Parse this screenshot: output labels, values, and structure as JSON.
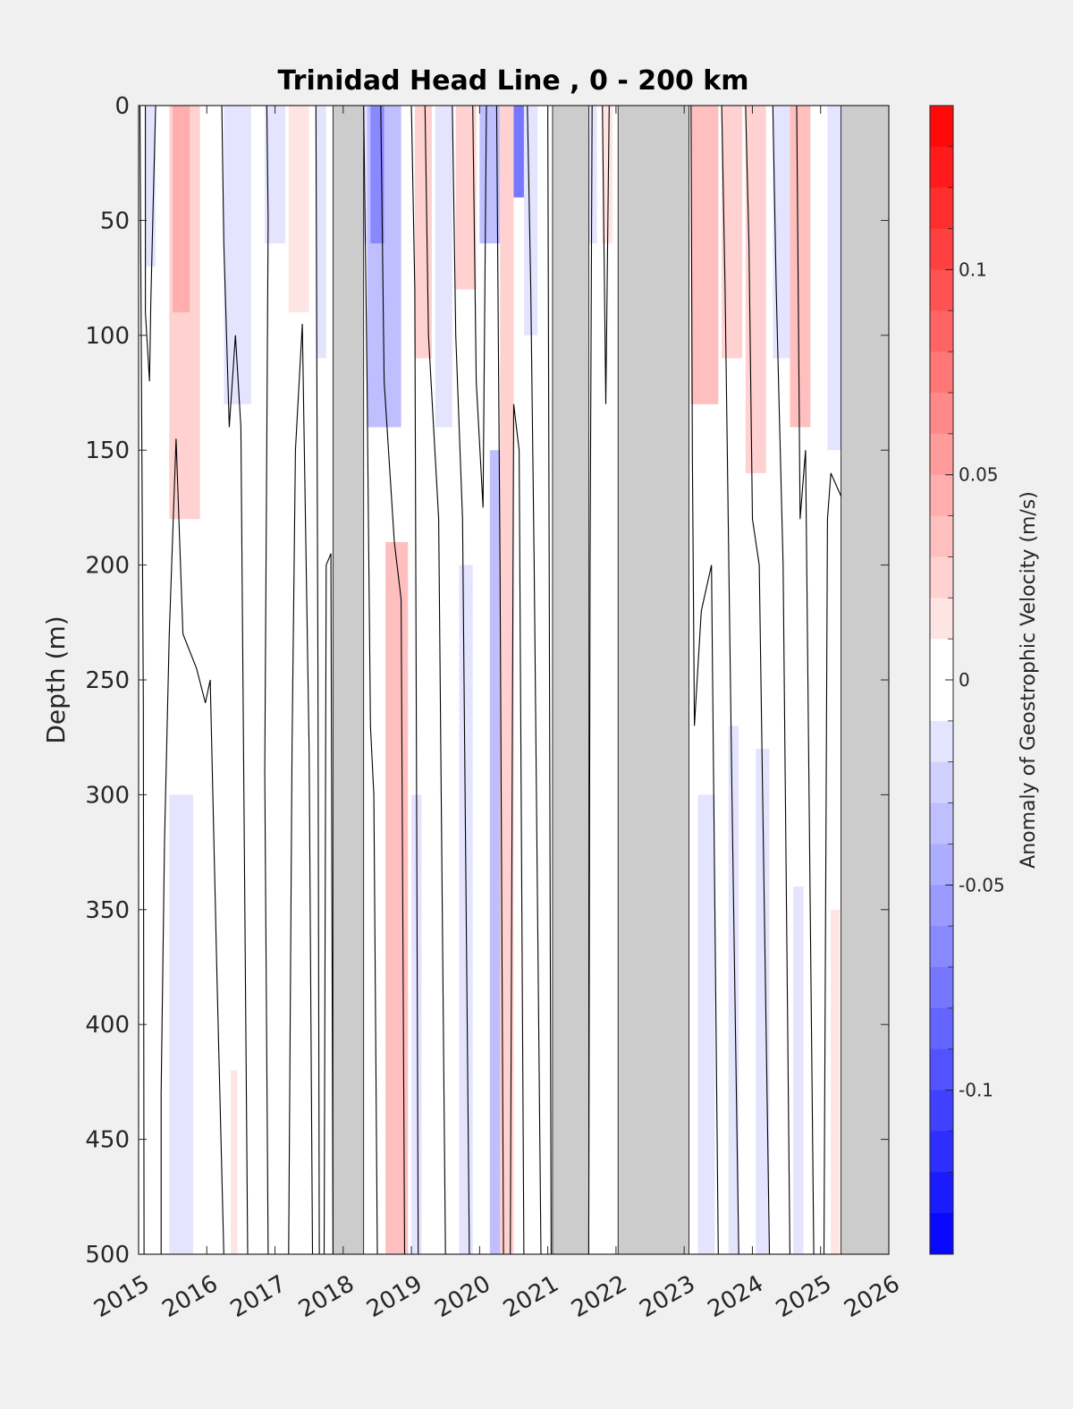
{
  "chart_data": {
    "type": "heatmap",
    "title": "Trinidad Head Line , 0 - 200 km",
    "xlabel": "",
    "ylabel": "Depth (m)",
    "colorbar_label": "Anomaly of Geostrophic Velocity (m/s)",
    "xlim": [
      2015,
      2026
    ],
    "ylim": [
      0,
      500
    ],
    "y_reversed": true,
    "x_ticks": [
      "2015",
      "2016",
      "2017",
      "2018",
      "2019",
      "2020",
      "2021",
      "2022",
      "2023",
      "2024",
      "2025",
      "2026"
    ],
    "y_ticks": [
      "0",
      "50",
      "100",
      "150",
      "200",
      "250",
      "300",
      "350",
      "400",
      "450",
      "500"
    ],
    "clim": [
      -0.14,
      0.14
    ],
    "colorbar_ticks": [
      {
        "value": 0.1,
        "label": "0.1"
      },
      {
        "value": 0.05,
        "label": "0.05"
      },
      {
        "value": 0,
        "label": "0"
      },
      {
        "value": -0.05,
        "label": "-0.05"
      },
      {
        "value": -0.1,
        "label": "-0.1"
      }
    ],
    "colorbar_levels": 28,
    "no_data_color": "#cccccc",
    "colormap": {
      "negative": "#0000ff",
      "zero": "#ffffff",
      "positive": "#ff0000"
    },
    "no_data_periods": [
      [
        2017.85,
        2018.3
      ],
      [
        2021.07,
        2021.6
      ],
      [
        2022.03,
        2023.07
      ],
      [
        2025.3,
        2026.0
      ]
    ],
    "anomaly_bands": [
      {
        "x0": 2015.1,
        "x1": 2015.25,
        "d0": 0,
        "d1": 70,
        "v": -0.015
      },
      {
        "x0": 2015.45,
        "x1": 2015.9,
        "d0": 0,
        "d1": 180,
        "v": 0.025
      },
      {
        "x0": 2015.5,
        "x1": 2015.75,
        "d0": 0,
        "d1": 90,
        "v": 0.04
      },
      {
        "x0": 2015.45,
        "x1": 2015.8,
        "d0": 300,
        "d1": 500,
        "v": -0.015
      },
      {
        "x0": 2016.25,
        "x1": 2016.65,
        "d0": 0,
        "d1": 130,
        "v": -0.015
      },
      {
        "x0": 2016.35,
        "x1": 2016.45,
        "d0": 420,
        "d1": 500,
        "v": 0.015
      },
      {
        "x0": 2016.85,
        "x1": 2017.15,
        "d0": 0,
        "d1": 60,
        "v": -0.015
      },
      {
        "x0": 2017.2,
        "x1": 2017.5,
        "d0": 0,
        "d1": 90,
        "v": 0.015
      },
      {
        "x0": 2017.6,
        "x1": 2017.75,
        "d0": 0,
        "d1": 110,
        "v": -0.015
      },
      {
        "x0": 2018.3,
        "x1": 2018.55,
        "d0": 0,
        "d1": 60,
        "v": -0.015
      },
      {
        "x0": 2018.35,
        "x1": 2018.85,
        "d0": 0,
        "d1": 140,
        "v": -0.04
      },
      {
        "x0": 2018.4,
        "x1": 2018.6,
        "d0": 0,
        "d1": 60,
        "v": -0.07
      },
      {
        "x0": 2018.62,
        "x1": 2018.95,
        "d0": 190,
        "d1": 500,
        "v": 0.03
      },
      {
        "x0": 2019.05,
        "x1": 2019.3,
        "d0": 0,
        "d1": 110,
        "v": 0.02
      },
      {
        "x0": 2019.0,
        "x1": 2019.15,
        "d0": 300,
        "d1": 500,
        "v": -0.015
      },
      {
        "x0": 2019.35,
        "x1": 2019.6,
        "d0": 0,
        "d1": 140,
        "v": -0.015
      },
      {
        "x0": 2019.65,
        "x1": 2019.95,
        "d0": 0,
        "d1": 80,
        "v": 0.02
      },
      {
        "x0": 2019.7,
        "x1": 2019.9,
        "d0": 200,
        "d1": 500,
        "v": -0.015
      },
      {
        "x0": 2020.0,
        "x1": 2020.3,
        "d0": 0,
        "d1": 60,
        "v": -0.04
      },
      {
        "x0": 2020.15,
        "x1": 2020.4,
        "d0": 150,
        "d1": 500,
        "v": -0.04
      },
      {
        "x0": 2020.3,
        "x1": 2020.5,
        "d0": 0,
        "d1": 500,
        "v": 0.025
      },
      {
        "x0": 2020.5,
        "x1": 2020.65,
        "d0": 0,
        "d1": 40,
        "v": -0.08
      },
      {
        "x0": 2020.65,
        "x1": 2020.85,
        "d0": 0,
        "d1": 100,
        "v": -0.015
      },
      {
        "x0": 2021.6,
        "x1": 2021.72,
        "d0": 0,
        "d1": 60,
        "v": -0.015
      },
      {
        "x0": 2021.8,
        "x1": 2021.95,
        "d0": 0,
        "d1": 60,
        "v": 0.015
      },
      {
        "x0": 2023.1,
        "x1": 2023.5,
        "d0": 0,
        "d1": 130,
        "v": 0.035
      },
      {
        "x0": 2023.2,
        "x1": 2023.45,
        "d0": 300,
        "d1": 500,
        "v": -0.015
      },
      {
        "x0": 2023.55,
        "x1": 2023.85,
        "d0": 0,
        "d1": 110,
        "v": 0.02
      },
      {
        "x0": 2023.65,
        "x1": 2023.8,
        "d0": 270,
        "d1": 500,
        "v": -0.015
      },
      {
        "x0": 2023.9,
        "x1": 2024.2,
        "d0": 0,
        "d1": 160,
        "v": 0.025
      },
      {
        "x0": 2024.05,
        "x1": 2024.25,
        "d0": 280,
        "d1": 500,
        "v": -0.015
      },
      {
        "x0": 2024.3,
        "x1": 2024.55,
        "d0": 0,
        "d1": 110,
        "v": -0.015
      },
      {
        "x0": 2024.55,
        "x1": 2024.85,
        "d0": 0,
        "d1": 140,
        "v": 0.03
      },
      {
        "x0": 2024.6,
        "x1": 2024.75,
        "d0": 340,
        "d1": 500,
        "v": -0.015
      },
      {
        "x0": 2025.1,
        "x1": 2025.3,
        "d0": 0,
        "d1": 150,
        "v": -0.02
      },
      {
        "x0": 2025.15,
        "x1": 2025.28,
        "d0": 350,
        "d1": 500,
        "v": 0.015
      }
    ],
    "contours": [
      [
        [
          2015.02,
          0
        ],
        [
          2015.05,
          160
        ],
        [
          2015.07,
          260
        ],
        [
          2015.08,
          500
        ]
      ],
      [
        [
          2015.25,
          0
        ],
        [
          2015.22,
          35
        ],
        [
          2015.18,
          85
        ],
        [
          2015.16,
          120
        ],
        [
          2015.1,
          90
        ],
        [
          2015.1,
          0
        ]
      ],
      [
        [
          2015.33,
          500
        ],
        [
          2015.33,
          430
        ],
        [
          2015.38,
          320
        ],
        [
          2015.45,
          230
        ],
        [
          2015.55,
          145
        ],
        [
          2015.65,
          230
        ],
        [
          2015.85,
          245
        ],
        [
          2015.98,
          260
        ],
        [
          2016.05,
          250
        ],
        [
          2016.15,
          380
        ],
        [
          2016.25,
          500
        ]
      ],
      [
        [
          2016.22,
          0
        ],
        [
          2016.25,
          60
        ],
        [
          2016.33,
          140
        ],
        [
          2016.42,
          100
        ],
        [
          2016.5,
          140
        ],
        [
          2016.6,
          500
        ]
      ],
      [
        [
          2016.88,
          0
        ],
        [
          2016.9,
          50
        ],
        [
          2016.85,
          290
        ],
        [
          2016.9,
          500
        ]
      ],
      [
        [
          2017.2,
          500
        ],
        [
          2017.25,
          280
        ],
        [
          2017.3,
          150
        ],
        [
          2017.4,
          95
        ],
        [
          2017.5,
          280
        ],
        [
          2017.55,
          500
        ]
      ],
      [
        [
          2017.6,
          0
        ],
        [
          2017.63,
          250
        ],
        [
          2017.65,
          500
        ]
      ],
      [
        [
          2017.72,
          500
        ],
        [
          2017.75,
          200
        ],
        [
          2017.82,
          195
        ],
        [
          2017.85,
          500
        ]
      ],
      [
        [
          2018.3,
          0
        ],
        [
          2018.35,
          120
        ],
        [
          2018.4,
          270
        ],
        [
          2018.45,
          300
        ],
        [
          2018.5,
          500
        ]
      ],
      [
        [
          2018.55,
          0
        ],
        [
          2018.6,
          120
        ],
        [
          2018.75,
          190
        ],
        [
          2018.85,
          215
        ],
        [
          2018.9,
          500
        ]
      ],
      [
        [
          2019.0,
          0
        ],
        [
          2019.05,
          80
        ],
        [
          2019.1,
          500
        ]
      ],
      [
        [
          2019.2,
          0
        ],
        [
          2019.25,
          100
        ],
        [
          2019.4,
          180
        ],
        [
          2019.5,
          500
        ]
      ],
      [
        [
          2019.6,
          0
        ],
        [
          2019.65,
          100
        ],
        [
          2019.75,
          180
        ],
        [
          2019.85,
          500
        ]
      ],
      [
        [
          2019.9,
          0
        ],
        [
          2019.95,
          120
        ],
        [
          2020.05,
          175
        ],
        [
          2020.1,
          0
        ]
      ],
      [
        [
          2020.25,
          0
        ],
        [
          2020.3,
          200
        ],
        [
          2020.35,
          500
        ]
      ],
      [
        [
          2020.45,
          500
        ],
        [
          2020.5,
          130
        ],
        [
          2020.58,
          150
        ],
        [
          2020.65,
          500
        ]
      ],
      [
        [
          2020.7,
          0
        ],
        [
          2020.75,
          80
        ],
        [
          2020.8,
          200
        ],
        [
          2020.9,
          500
        ]
      ],
      [
        [
          2021.0,
          0
        ],
        [
          2021.02,
          200
        ],
        [
          2021.05,
          500
        ]
      ],
      [
        [
          2021.6,
          500
        ],
        [
          2021.62,
          200
        ],
        [
          2021.65,
          0
        ]
      ],
      [
        [
          2021.8,
          0
        ],
        [
          2021.85,
          130
        ],
        [
          2021.9,
          0
        ]
      ],
      [
        [
          2023.1,
          0
        ],
        [
          2023.12,
          150
        ],
        [
          2023.15,
          270
        ],
        [
          2023.25,
          220
        ],
        [
          2023.4,
          200
        ],
        [
          2023.5,
          500
        ]
      ],
      [
        [
          2023.55,
          0
        ],
        [
          2023.6,
          80
        ],
        [
          2023.7,
          300
        ],
        [
          2023.8,
          500
        ]
      ],
      [
        [
          2023.9,
          0
        ],
        [
          2023.95,
          60
        ],
        [
          2024.0,
          180
        ],
        [
          2024.1,
          200
        ],
        [
          2024.25,
          500
        ]
      ],
      [
        [
          2024.3,
          0
        ],
        [
          2024.35,
          80
        ],
        [
          2024.45,
          200
        ],
        [
          2024.55,
          500
        ]
      ],
      [
        [
          2024.65,
          0
        ],
        [
          2024.7,
          180
        ],
        [
          2024.78,
          150
        ],
        [
          2024.9,
          500
        ]
      ],
      [
        [
          2025.05,
          500
        ],
        [
          2025.1,
          180
        ],
        [
          2025.15,
          160
        ],
        [
          2025.3,
          170
        ]
      ]
    ]
  }
}
